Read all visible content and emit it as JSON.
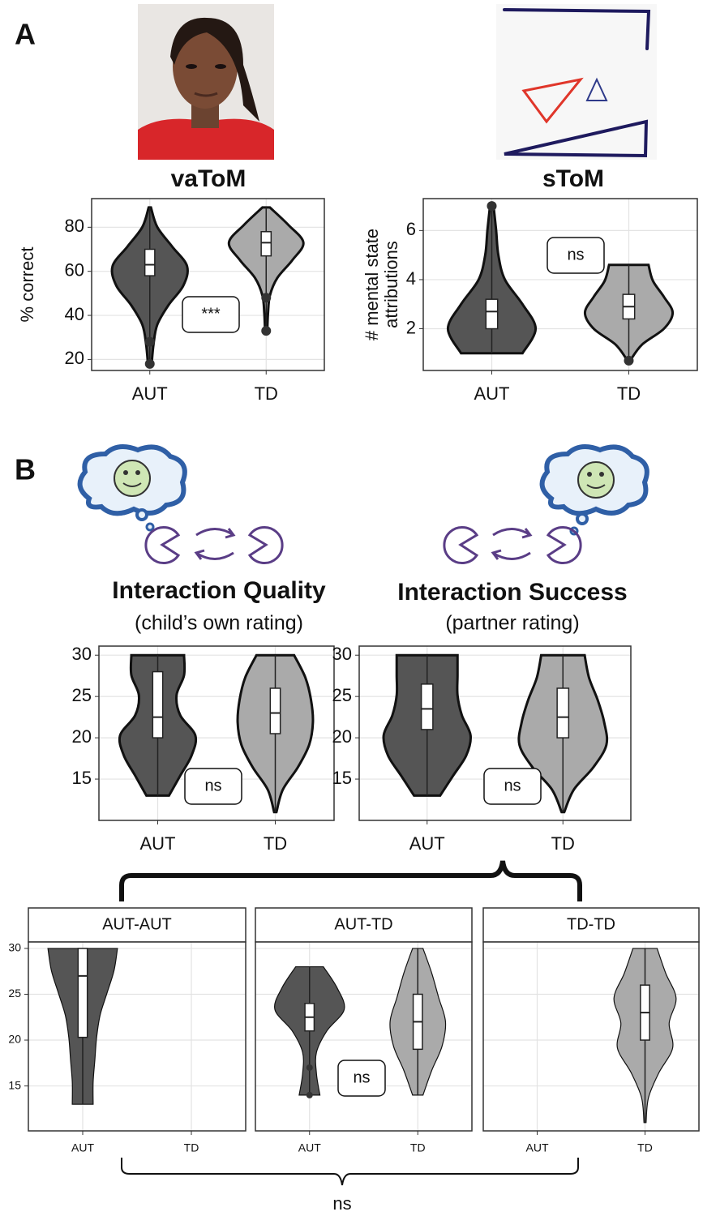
{
  "panel_labels": [
    "A",
    "B"
  ],
  "bottom_annotation": "ns",
  "chart_data": [
    {
      "type": "violin",
      "title": "vaToM",
      "ylabel": [
        "% correct"
      ],
      "categories": [
        "AUT",
        "TD"
      ],
      "colors": [
        "#555555",
        "#aaaaaa"
      ],
      "ylim": [
        15,
        93
      ],
      "yticks": [
        20,
        40,
        60,
        80
      ],
      "grid": true,
      "annotation": "***",
      "violins": [
        {
          "min": 18,
          "max": 89,
          "q1": 58,
          "median": 63,
          "q3": 70,
          "outliers": [
            18,
            28
          ],
          "density": [
            0.05,
            0.1,
            0.2,
            0.5,
            0.9,
            1,
            0.6,
            0.2,
            0.03
          ]
        },
        {
          "min": 33,
          "max": 89,
          "q1": 67,
          "median": 73,
          "q3": 78,
          "outliers": [
            33,
            48
          ],
          "density": [
            0.03,
            0.05,
            0.1,
            0.3,
            0.7,
            1,
            0.6,
            0.1
          ]
        }
      ]
    },
    {
      "type": "violin",
      "title": "sToM",
      "ylabel": [
        "# mental state",
        "attributions"
      ],
      "categories": [
        "AUT",
        "TD"
      ],
      "colors": [
        "#555555",
        "#aaaaaa"
      ],
      "ylim": [
        0.3,
        7.3
      ],
      "yticks": [
        2,
        4,
        6
      ],
      "grid": true,
      "annotation": "ns",
      "violins": [
        {
          "min": 1,
          "max": 7,
          "q1": 2,
          "median": 2.7,
          "q3": 3.2,
          "outliers": [
            7
          ],
          "density": [
            0.7,
            1,
            0.7,
            0.3,
            0.15,
            0.1,
            0.04
          ]
        },
        {
          "min": 0.7,
          "max": 4.6,
          "q1": 2.4,
          "median": 2.9,
          "q3": 3.4,
          "outliers": [
            0.7
          ],
          "density": [
            0.03,
            0.3,
            0.8,
            1,
            0.8,
            0.55,
            0.45
          ]
        }
      ]
    },
    {
      "type": "violin",
      "title": "Interaction Quality",
      "subtitle": "(child’s own rating)",
      "categories": [
        "AUT",
        "TD"
      ],
      "colors": [
        "#555555",
        "#aaaaaa"
      ],
      "ylim": [
        10,
        31.1
      ],
      "yticks": [
        15,
        20,
        25,
        30
      ],
      "grid": true,
      "annotation": "ns",
      "violins": [
        {
          "min": 13,
          "max": 30,
          "q1": 20,
          "median": 22.5,
          "q3": 28,
          "outliers": [],
          "density": [
            0.3,
            0.6,
            0.9,
            1,
            0.6,
            0.5,
            0.7,
            0.7
          ]
        },
        {
          "min": 11,
          "max": 30,
          "q1": 20.5,
          "median": 23,
          "q3": 26,
          "outliers": [],
          "density": [
            0.03,
            0.2,
            0.6,
            0.9,
            1,
            0.95,
            0.8,
            0.5
          ]
        }
      ]
    },
    {
      "type": "violin",
      "title": "Interaction Success",
      "subtitle": "(partner rating)",
      "categories": [
        "AUT",
        "TD"
      ],
      "colors": [
        "#555555",
        "#aaaaaa"
      ],
      "ylim": [
        10,
        31.1
      ],
      "yticks": [
        15,
        20,
        25,
        30
      ],
      "grid": true,
      "annotation": "ns",
      "violins": [
        {
          "min": 13,
          "max": 30,
          "q1": 21,
          "median": 23.5,
          "q3": 26.5,
          "outliers": [],
          "density": [
            0.3,
            0.6,
            0.9,
            1,
            0.8,
            0.7,
            0.7,
            0.7
          ]
        },
        {
          "min": 11,
          "max": 30,
          "q1": 20,
          "median": 22.5,
          "q3": 26,
          "outliers": [],
          "density": [
            0.03,
            0.25,
            0.7,
            1,
            0.95,
            0.8,
            0.6,
            0.5
          ]
        }
      ]
    },
    {
      "type": "violin-facets",
      "categories": [
        "AUT",
        "TD"
      ],
      "colors": [
        "#555555",
        "#aaaaaa"
      ],
      "ylim": [
        10.1,
        30.7
      ],
      "yticks": [
        15,
        20,
        25,
        30
      ],
      "grid": true,
      "annotation": "ns",
      "facets": [
        {
          "label": "AUT-AUT",
          "violins": [
            {
              "min": 13,
              "max": 30,
              "q1": 20.3,
              "median": 27,
              "q3": 30,
              "outliers": [],
              "density": [
                0.3,
                0.3,
                0.35,
                0.4,
                0.5,
                0.7,
                0.9,
                1
              ]
            },
            null
          ]
        },
        {
          "label": "AUT-TD",
          "violins": [
            {
              "min": 14,
              "max": 28,
              "q1": 21,
              "median": 22.5,
              "q3": 24,
              "outliers": [
                17,
                14
              ],
              "density": [
                0.3,
                0.2,
                0.2,
                0.5,
                1,
                0.8,
                0.4
              ]
            },
            {
              "min": 14,
              "max": 30,
              "q1": 19,
              "median": 22,
              "q3": 25,
              "outliers": [],
              "density": [
                0.15,
                0.4,
                0.7,
                0.8,
                0.6,
                0.4,
                0.15
              ]
            }
          ]
        },
        {
          "label": "TD-TD",
          "violins": [
            null,
            {
              "min": 11,
              "max": 30,
              "q1": 20,
              "median": 23,
              "q3": 26,
              "outliers": [],
              "density": [
                0.03,
                0.1,
                0.4,
                0.8,
                0.7,
                0.9,
                0.6,
                0.35
              ]
            }
          ]
        }
      ]
    }
  ]
}
